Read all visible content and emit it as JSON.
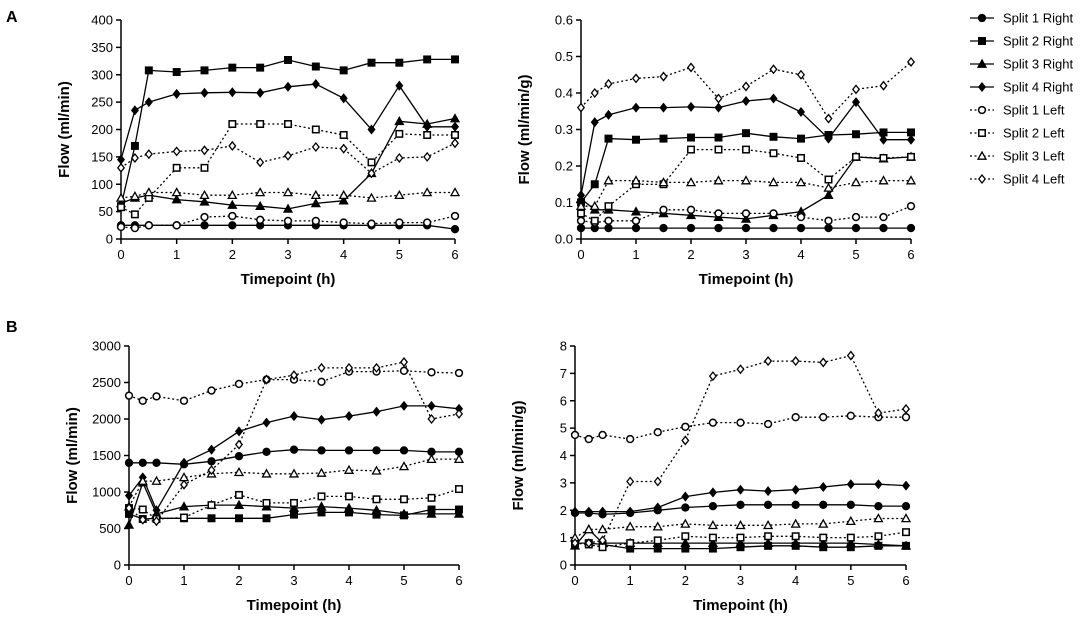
{
  "panel_letters": [
    "A",
    "B"
  ],
  "legend": {
    "entries": [
      {
        "label": "Split 1 Right",
        "marker": "circle",
        "filled": true,
        "dashed": false
      },
      {
        "label": "Split 2 Right",
        "marker": "square",
        "filled": true,
        "dashed": false
      },
      {
        "label": "Split 3 Right",
        "marker": "triangle",
        "filled": true,
        "dashed": false
      },
      {
        "label": "Split 4 Right",
        "marker": "diamond",
        "filled": true,
        "dashed": false
      },
      {
        "label": "Split 1 Left",
        "marker": "circle",
        "filled": false,
        "dashed": true
      },
      {
        "label": "Split 2 Left",
        "marker": "square",
        "filled": false,
        "dashed": true
      },
      {
        "label": "Split 3 Left",
        "marker": "triangle",
        "filled": false,
        "dashed": true
      },
      {
        "label": "Split 4 Left",
        "marker": "diamond",
        "filled": false,
        "dashed": true
      }
    ]
  },
  "chart_data": [
    {
      "id": "A-left",
      "panel": "A",
      "type": "line",
      "xlabel": "Timepoint (h)",
      "ylabel": "Flow (ml/min)",
      "xlim": [
        0,
        6
      ],
      "ylim": [
        0,
        400
      ],
      "xticks": [
        0,
        1,
        2,
        3,
        4,
        5,
        6
      ],
      "yticks": [
        0,
        50,
        100,
        150,
        200,
        250,
        300,
        350,
        400
      ],
      "x": [
        0,
        0.25,
        0.5,
        1,
        1.5,
        2,
        2.5,
        3,
        3.5,
        4,
        4.5,
        5,
        5.5,
        6
      ],
      "series": [
        {
          "name": "Split 1 Right",
          "values": [
            25,
            25,
            25,
            25,
            25,
            25,
            25,
            25,
            25,
            25,
            25,
            25,
            25,
            18
          ]
        },
        {
          "name": "Split 2 Right",
          "values": [
            60,
            170,
            308,
            305,
            308,
            313,
            313,
            327,
            315,
            308,
            322,
            322,
            328,
            328
          ]
        },
        {
          "name": "Split 3 Right",
          "values": [
            65,
            75,
            80,
            72,
            68,
            62,
            60,
            55,
            65,
            70,
            120,
            215,
            210,
            220
          ]
        },
        {
          "name": "Split 4 Right",
          "values": [
            145,
            235,
            250,
            265,
            267,
            268,
            267,
            278,
            283,
            257,
            200,
            280,
            205,
            205
          ]
        },
        {
          "name": "Split 1 Left",
          "values": [
            22,
            20,
            25,
            25,
            40,
            42,
            35,
            33,
            33,
            30,
            28,
            30,
            30,
            42
          ]
        },
        {
          "name": "Split 2 Left",
          "values": [
            58,
            45,
            75,
            130,
            130,
            210,
            210,
            210,
            200,
            190,
            140,
            192,
            190,
            190
          ]
        },
        {
          "name": "Split 3 Left",
          "values": [
            75,
            78,
            85,
            85,
            80,
            80,
            85,
            85,
            80,
            80,
            75,
            80,
            85,
            85
          ]
        },
        {
          "name": "Split 4 Left",
          "values": [
            130,
            148,
            155,
            160,
            162,
            170,
            140,
            152,
            168,
            165,
            120,
            148,
            150,
            175
          ]
        }
      ]
    },
    {
      "id": "A-right",
      "panel": "A",
      "type": "line",
      "xlabel": "Timepoint (h)",
      "ylabel": "Flow (ml/min/g)",
      "xlim": [
        0,
        6
      ],
      "ylim": [
        0,
        0.6
      ],
      "xticks": [
        0,
        1,
        2,
        3,
        4,
        5,
        6
      ],
      "yticks": [
        0.0,
        0.1,
        0.2,
        0.3,
        0.4,
        0.5,
        0.6
      ],
      "x": [
        0,
        0.25,
        0.5,
        1,
        1.5,
        2,
        2.5,
        3,
        3.5,
        4,
        4.5,
        5,
        5.5,
        6
      ],
      "series": [
        {
          "name": "Split 1 Right",
          "values": [
            0.03,
            0.03,
            0.03,
            0.03,
            0.03,
            0.03,
            0.03,
            0.03,
            0.03,
            0.03,
            0.03,
            0.03,
            0.03,
            0.03
          ]
        },
        {
          "name": "Split 2 Right",
          "values": [
            0.1,
            0.15,
            0.275,
            0.272,
            0.275,
            0.278,
            0.278,
            0.29,
            0.28,
            0.275,
            0.285,
            0.287,
            0.292,
            0.292
          ]
        },
        {
          "name": "Split 3 Right",
          "values": [
            0.11,
            0.08,
            0.08,
            0.075,
            0.07,
            0.065,
            0.06,
            0.055,
            0.065,
            0.075,
            0.12,
            0.225,
            0.22,
            0.225
          ]
        },
        {
          "name": "Split 4 Right",
          "values": [
            0.12,
            0.32,
            0.34,
            0.36,
            0.36,
            0.362,
            0.36,
            0.378,
            0.385,
            0.348,
            0.275,
            0.375,
            0.272,
            0.272
          ]
        },
        {
          "name": "Split 1 Left",
          "values": [
            0.05,
            0.045,
            0.05,
            0.05,
            0.08,
            0.08,
            0.07,
            0.07,
            0.07,
            0.06,
            0.05,
            0.06,
            0.06,
            0.09
          ]
        },
        {
          "name": "Split 2 Left",
          "values": [
            0.07,
            0.05,
            0.09,
            0.15,
            0.15,
            0.245,
            0.245,
            0.245,
            0.235,
            0.222,
            0.163,
            0.225,
            0.222,
            0.225
          ]
        },
        {
          "name": "Split 3 Left",
          "values": [
            0.09,
            0.09,
            0.16,
            0.16,
            0.155,
            0.155,
            0.16,
            0.16,
            0.155,
            0.155,
            0.14,
            0.155,
            0.16,
            0.16
          ]
        },
        {
          "name": "Split 4 Left",
          "values": [
            0.36,
            0.4,
            0.425,
            0.44,
            0.445,
            0.47,
            0.385,
            0.418,
            0.465,
            0.45,
            0.33,
            0.41,
            0.42,
            0.485
          ]
        }
      ]
    },
    {
      "id": "B-left",
      "panel": "B",
      "type": "line",
      "xlabel": "Timepoint (h)",
      "ylabel": "Flow (ml/min)",
      "xlim": [
        0,
        6
      ],
      "ylim": [
        0,
        3000
      ],
      "xticks": [
        0,
        1,
        2,
        3,
        4,
        5,
        6
      ],
      "yticks": [
        0,
        500,
        1000,
        1500,
        2000,
        2500,
        3000
      ],
      "x": [
        0,
        0.25,
        0.5,
        1,
        1.5,
        2,
        2.5,
        3,
        3.5,
        4,
        4.5,
        5,
        5.5,
        6
      ],
      "series": [
        {
          "name": "Split 1 Right",
          "values": [
            1400,
            1400,
            1400,
            1380,
            1420,
            1490,
            1550,
            1580,
            1570,
            1570,
            1570,
            1570,
            1550,
            1550
          ]
        },
        {
          "name": "Split 2 Right",
          "values": [
            700,
            630,
            640,
            640,
            640,
            640,
            640,
            690,
            720,
            720,
            690,
            680,
            760,
            760
          ]
        },
        {
          "name": "Split 3 Right",
          "values": [
            550,
            1130,
            700,
            800,
            820,
            820,
            800,
            780,
            800,
            780,
            750,
            700,
            700,
            700
          ]
        },
        {
          "name": "Split 4 Right",
          "values": [
            950,
            1200,
            750,
            1400,
            1580,
            1830,
            1950,
            2040,
            1990,
            2040,
            2100,
            2180,
            2180,
            2140
          ]
        },
        {
          "name": "Split 1 Left",
          "values": [
            2320,
            2250,
            2310,
            2250,
            2390,
            2480,
            2540,
            2540,
            2510,
            2650,
            2650,
            2660,
            2640,
            2630
          ]
        },
        {
          "name": "Split 2 Left",
          "values": [
            780,
            760,
            630,
            650,
            820,
            960,
            850,
            850,
            940,
            940,
            900,
            900,
            920,
            1040
          ]
        },
        {
          "name": "Split 3 Left",
          "values": [
            800,
            1150,
            1150,
            1200,
            1250,
            1270,
            1250,
            1250,
            1260,
            1300,
            1290,
            1350,
            1450,
            1450
          ]
        },
        {
          "name": "Split 4 Left",
          "values": [
            780,
            620,
            600,
            1100,
            1300,
            1650,
            2540,
            2600,
            2700,
            2700,
            2700,
            2780,
            2000,
            2070
          ]
        }
      ]
    },
    {
      "id": "B-right",
      "panel": "B",
      "type": "line",
      "xlabel": "Timepoint (h)",
      "ylabel": "Flow (ml/min/g)",
      "xlim": [
        0,
        6
      ],
      "ylim": [
        0,
        8
      ],
      "xticks": [
        0,
        1,
        2,
        3,
        4,
        5,
        6
      ],
      "yticks": [
        0,
        1,
        2,
        3,
        4,
        5,
        6,
        7,
        8
      ],
      "x": [
        0,
        0.25,
        0.5,
        1,
        1.5,
        2,
        2.5,
        3,
        3.5,
        4,
        4.5,
        5,
        5.5,
        6
      ],
      "series": [
        {
          "name": "Split 1 Right",
          "values": [
            1.9,
            1.9,
            1.85,
            1.9,
            2.0,
            2.1,
            2.15,
            2.2,
            2.2,
            2.2,
            2.2,
            2.2,
            2.15,
            2.15
          ]
        },
        {
          "name": "Split 2 Right",
          "values": [
            0.8,
            0.8,
            0.75,
            0.6,
            0.6,
            0.6,
            0.6,
            0.65,
            0.7,
            0.7,
            0.65,
            0.65,
            0.7,
            0.7
          ]
        },
        {
          "name": "Split 3 Right",
          "values": [
            0.7,
            1.3,
            0.8,
            0.8,
            0.8,
            0.8,
            0.8,
            0.8,
            0.8,
            0.8,
            0.8,
            0.8,
            0.75,
            0.7
          ]
        },
        {
          "name": "Split 4 Right",
          "values": [
            1.95,
            1.95,
            1.95,
            1.95,
            2.1,
            2.5,
            2.65,
            2.75,
            2.7,
            2.75,
            2.85,
            2.95,
            2.95,
            2.9
          ]
        },
        {
          "name": "Split 1 Left",
          "values": [
            4.75,
            4.6,
            4.75,
            4.6,
            4.85,
            5.05,
            5.2,
            5.2,
            5.15,
            5.4,
            5.4,
            5.45,
            5.4,
            5.4
          ]
        },
        {
          "name": "Split 2 Left",
          "values": [
            0.8,
            0.75,
            0.65,
            0.8,
            0.9,
            1.05,
            1.0,
            1.0,
            1.05,
            1.05,
            1.0,
            1.0,
            1.05,
            1.2
          ]
        },
        {
          "name": "Split 3 Left",
          "values": [
            1.0,
            1.3,
            1.3,
            1.4,
            1.4,
            1.5,
            1.45,
            1.45,
            1.45,
            1.5,
            1.5,
            1.6,
            1.7,
            1.7
          ]
        },
        {
          "name": "Split 4 Left",
          "values": [
            0.8,
            0.8,
            0.9,
            3.05,
            3.05,
            4.55,
            6.9,
            7.15,
            7.45,
            7.45,
            7.4,
            7.65,
            5.55,
            5.7
          ]
        }
      ]
    }
  ]
}
